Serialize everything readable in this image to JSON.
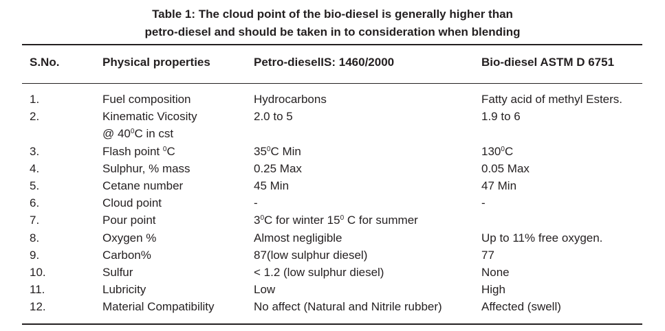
{
  "caption": {
    "line1": "Table 1: The cloud point of the bio-diesel is generally higher than",
    "line2": "petro-diesel and should be taken in to consideration when blending"
  },
  "headers": {
    "sno": "S.No.",
    "property": "Physical properties",
    "petro": "Petro-dieselIS: 1460/2000",
    "bio": "Bio-diesel  ASTM D 6751"
  },
  "rows": [
    {
      "sno": "1.",
      "property": "Fuel composition",
      "petro": "Hydrocarbons",
      "bio": "Fatty acid of methyl Esters."
    },
    {
      "sno": "2.",
      "property": "Kinematic Vicosity",
      "property_line2": "@ 40°C in cst",
      "petro": "2.0 to 5",
      "bio": "1.9 to 6"
    },
    {
      "sno": "3.",
      "property": "Flash point °C",
      "petro": "35°C Min",
      "bio": "130°C"
    },
    {
      "sno": "4.",
      "property": "Sulphur, % mass",
      "petro": "0.25 Max",
      "bio": "0.05 Max"
    },
    {
      "sno": "5.",
      "property": "Cetane number",
      "petro": "45 Min",
      "bio": "47 Min"
    },
    {
      "sno": "6.",
      "property": "Cloud point",
      "petro": "-",
      "bio": "-"
    },
    {
      "sno": "7.",
      "property": "Pour point",
      "petro": "3°C for winter 15° C for summer",
      "bio": ""
    },
    {
      "sno": "8.",
      "property": "Oxygen %",
      "petro": "Almost negligible",
      "bio": "Up to 11% free oxygen."
    },
    {
      "sno": "9.",
      "property": "Carbon%",
      "petro": "87(low sulphur diesel)",
      "bio": "77"
    },
    {
      "sno": "10.",
      "property": "Sulfur",
      "petro": "< 1.2 (low sulphur diesel)",
      "bio": "None"
    },
    {
      "sno": "11.",
      "property": "Lubricity",
      "petro": "Low",
      "bio": "High"
    },
    {
      "sno": "12.",
      "property": "Material Compatibility",
      "petro": "No affect (Natural and Nitrile rubber)",
      "bio": "Affected (swell)"
    }
  ]
}
